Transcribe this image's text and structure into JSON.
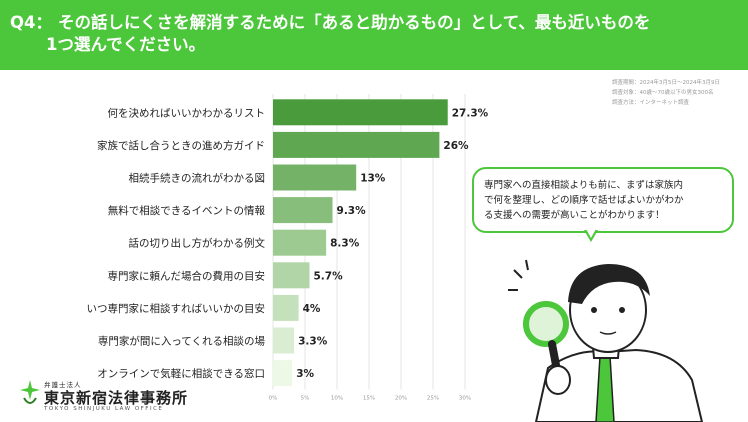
{
  "header": {
    "question_no": "Q4：",
    "question_line1": "その話しにくさを解消するために「あると助かるもの」として、最も近いものを",
    "question_line2": "1つ選んでください。"
  },
  "survey_meta": [
    "調査期間：2024年3月5日～2024年3月9日",
    "調査対象：40歳〜70歳以下の男女300名",
    "調査方法：インターネット調査"
  ],
  "callout": {
    "line1": "専門家への直接相談よりも前に、まずは家族内",
    "line2": "で何を整理し、どの順序で話せばよいかがわか",
    "line3": "る支援への需要が高いことがわかります！"
  },
  "logo": {
    "small": "弁護士法人",
    "main": "東京新宿法律事務所",
    "english": "TOKYO SHINJUKU LAW OFFICE"
  },
  "colors": {
    "header_green": "#4cc63a",
    "bar_top": "#4a9b3c",
    "bar_bottom": "#eef8e6"
  },
  "chart_data": {
    "type": "bar",
    "orientation": "horizontal",
    "categories": [
      "何を決めればいいかわかるリスト",
      "家族で話し合うときの進め方ガイド",
      "相続手続きの流れがわかる図",
      "無料で相談できるイベントの情報",
      "話の切り出し方がわかる例文",
      "専門家に頼んだ場合の費用の目安",
      "いつ専門家に相談すればいいかの目安",
      "専門家が間に入ってくれる相談の場",
      "オンラインで気軽に相談できる窓口"
    ],
    "values": [
      27.3,
      26,
      13,
      9.3,
      8.3,
      5.7,
      4,
      3.3,
      3
    ],
    "value_labels": [
      "27.3%",
      "26%",
      "13%",
      "9.3%",
      "8.3%",
      "5.7%",
      "4%",
      "3.3%",
      "3%"
    ],
    "xlim": [
      0,
      30
    ],
    "ticks": [
      "0%",
      "5%",
      "10%",
      "15%",
      "20%",
      "25%",
      "30%"
    ],
    "grid": true
  }
}
